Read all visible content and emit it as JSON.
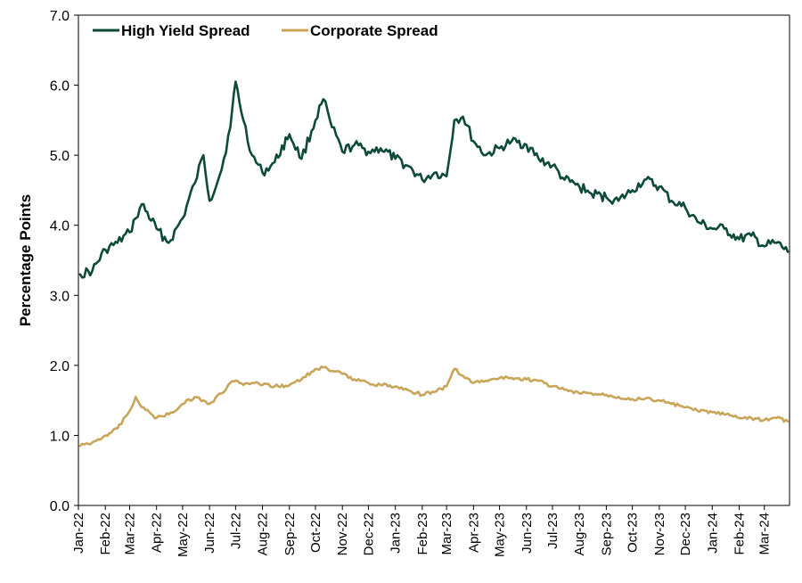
{
  "chart_data": {
    "type": "line",
    "ylabel": "Percentage Points",
    "ylim": [
      0,
      7
    ],
    "yticks": [
      "0.0",
      "1.0",
      "2.0",
      "3.0",
      "4.0",
      "5.0",
      "6.0",
      "7.0"
    ],
    "xticks": [
      "Jan-22",
      "Feb-22",
      "Mar-22",
      "Apr-22",
      "May-22",
      "Jun-22",
      "Jul-22",
      "Aug-22",
      "Sep-22",
      "Oct-22",
      "Nov-22",
      "Dec-22",
      "Jan-23",
      "Feb-23",
      "Mar-23",
      "Apr-23",
      "May-23",
      "Jun-23",
      "Jul-23",
      "Aug-23",
      "Sep-23",
      "Oct-23",
      "Nov-23",
      "Dec-23",
      "Jan-24",
      "Feb-24",
      "Mar-24"
    ],
    "legend_position": "top-left",
    "grid": false,
    "x": [
      "2022-01-03",
      "2022-01-17",
      "2022-02-01",
      "2022-02-15",
      "2022-03-01",
      "2022-03-08",
      "2022-03-15",
      "2022-04-01",
      "2022-04-15",
      "2022-05-01",
      "2022-05-15",
      "2022-05-25",
      "2022-06-01",
      "2022-06-15",
      "2022-06-25",
      "2022-07-01",
      "2022-07-10",
      "2022-07-20",
      "2022-08-01",
      "2022-08-15",
      "2022-09-01",
      "2022-09-15",
      "2022-10-01",
      "2022-10-10",
      "2022-10-20",
      "2022-11-01",
      "2022-11-15",
      "2022-12-01",
      "2022-12-15",
      "2023-01-01",
      "2023-01-15",
      "2023-02-01",
      "2023-02-15",
      "2023-03-01",
      "2023-03-10",
      "2023-03-20",
      "2023-04-01",
      "2023-04-15",
      "2023-05-01",
      "2023-05-15",
      "2023-06-01",
      "2023-06-15",
      "2023-07-01",
      "2023-07-15",
      "2023-08-01",
      "2023-08-15",
      "2023-09-01",
      "2023-09-15",
      "2023-10-01",
      "2023-10-15",
      "2023-11-01",
      "2023-11-15",
      "2023-12-01",
      "2023-12-15",
      "2024-01-01",
      "2024-01-15",
      "2024-02-01",
      "2024-02-15",
      "2024-03-01",
      "2024-03-15",
      "2024-03-28"
    ],
    "series": [
      {
        "name": "High Yield Spread",
        "color": "#0d4a3a",
        "values": [
          3.3,
          3.35,
          3.65,
          3.75,
          3.9,
          4.1,
          4.3,
          3.95,
          3.75,
          4.1,
          4.6,
          5.0,
          4.35,
          4.8,
          5.4,
          6.05,
          5.5,
          5.0,
          4.75,
          4.9,
          5.3,
          4.95,
          5.5,
          5.8,
          5.4,
          5.05,
          5.15,
          5.05,
          5.1,
          4.95,
          4.85,
          4.65,
          4.75,
          4.7,
          5.5,
          5.55,
          5.2,
          5.0,
          5.1,
          5.2,
          5.15,
          4.95,
          4.85,
          4.65,
          4.55,
          4.45,
          4.4,
          4.35,
          4.5,
          4.65,
          4.55,
          4.35,
          4.25,
          4.05,
          3.95,
          3.95,
          3.8,
          3.85,
          3.7,
          3.75,
          3.62
        ]
      },
      {
        "name": "Corporate Spread",
        "color": "#c9a55a",
        "values": [
          0.85,
          0.9,
          1.0,
          1.1,
          1.35,
          1.55,
          1.4,
          1.25,
          1.3,
          1.45,
          1.55,
          1.5,
          1.45,
          1.6,
          1.75,
          1.78,
          1.72,
          1.75,
          1.72,
          1.7,
          1.72,
          1.8,
          1.95,
          1.97,
          1.92,
          1.88,
          1.8,
          1.75,
          1.72,
          1.7,
          1.65,
          1.58,
          1.62,
          1.7,
          1.95,
          1.85,
          1.75,
          1.78,
          1.82,
          1.82,
          1.8,
          1.78,
          1.7,
          1.65,
          1.6,
          1.6,
          1.58,
          1.55,
          1.52,
          1.52,
          1.5,
          1.45,
          1.4,
          1.35,
          1.33,
          1.3,
          1.25,
          1.25,
          1.22,
          1.25,
          1.2
        ]
      }
    ]
  }
}
